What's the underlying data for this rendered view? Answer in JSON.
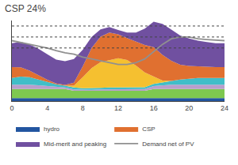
{
  "chart_data": {
    "type": "area",
    "stacked": true,
    "title": "CSP 24%",
    "x": [
      0,
      1,
      2,
      3,
      4,
      5,
      6,
      7,
      8,
      9,
      10,
      11,
      12,
      13,
      14,
      15,
      16,
      17,
      18,
      19,
      20,
      21,
      22,
      23,
      24
    ],
    "series": [
      {
        "name": "hydro",
        "color": "#2255a0",
        "values": [
          0.8,
          0.8,
          0.8,
          0.8,
          0.8,
          0.8,
          0.8,
          0.8,
          0.8,
          0.8,
          0.8,
          0.8,
          0.8,
          0.8,
          0.8,
          0.8,
          0.8,
          0.8,
          0.8,
          0.8,
          0.8,
          0.8,
          0.8,
          0.8,
          0.8
        ]
      },
      {
        "color": "#7ec850",
        "values": [
          2.5,
          2.5,
          2.5,
          2.5,
          2.5,
          2.5,
          2.5,
          2.0,
          2.0,
          2.0,
          2.0,
          2.0,
          2.0,
          2.0,
          2.0,
          2.0,
          2.5,
          2.5,
          2.5,
          2.5,
          2.5,
          2.5,
          2.5,
          2.5,
          2.5
        ]
      },
      {
        "color": "#b89fcc",
        "values": [
          1.2,
          1.2,
          1.2,
          1.0,
          0.8,
          0.5,
          0.4,
          0.4,
          0.3,
          0.3,
          0.4,
          0.4,
          0.4,
          0.4,
          0.4,
          0.5,
          0.8,
          1.0,
          1.2,
          1.2,
          1.2,
          1.2,
          1.2,
          1.2,
          1.2
        ]
      },
      {
        "color": "#40bec8",
        "values": [
          1.8,
          2.2,
          2.0,
          1.6,
          1.2,
          0.8,
          0.5,
          0.5,
          0.4,
          0.4,
          0.4,
          0.5,
          0.5,
          0.5,
          0.5,
          0.5,
          0.6,
          0.8,
          1.0,
          1.4,
          1.6,
          1.8,
          1.8,
          1.8,
          1.8
        ]
      },
      {
        "color": "#f5c030",
        "values": [
          0.0,
          0.0,
          0.0,
          0.0,
          0.0,
          0.0,
          0.0,
          0.5,
          3.0,
          5.5,
          7.0,
          7.5,
          8.0,
          7.5,
          6.0,
          4.0,
          2.0,
          0.5,
          0.0,
          0.0,
          0.0,
          0.0,
          0.0,
          0.0,
          0.0
        ]
      },
      {
        "name": "CSP",
        "color": "#e07030",
        "values": [
          3.0,
          2.5,
          1.8,
          1.2,
          0.5,
          0.2,
          0.2,
          0.8,
          3.0,
          5.5,
          7.0,
          7.5,
          6.5,
          6.0,
          6.5,
          7.5,
          8.0,
          7.0,
          5.5,
          4.0,
          3.5,
          3.2,
          3.0,
          3.0,
          3.0
        ]
      },
      {
        "name": "Mid-merit and peaking",
        "color": "#7050a0",
        "values": [
          6.5,
          7.0,
          7.2,
          7.2,
          7.0,
          6.5,
          6.5,
          6.5,
          4.5,
          3.0,
          2.0,
          1.5,
          1.2,
          1.5,
          2.5,
          4.5,
          7.0,
          8.5,
          8.5,
          8.0,
          7.5,
          7.0,
          6.8,
          6.5,
          6.5
        ]
      },
      {
        "name": "Demand net of PV",
        "type": "line",
        "color": "#909090",
        "values": [
          16.5,
          16.0,
          15.5,
          15.0,
          14.5,
          13.8,
          13.2,
          12.8,
          12.0,
          11.5,
          11.0,
          10.5,
          10.0,
          10.0,
          10.5,
          11.5,
          13.5,
          15.5,
          17.0,
          17.5,
          17.5,
          17.0,
          16.8,
          16.6,
          16.5
        ]
      }
    ],
    "hlines": [
      20.5,
      17.5,
      14.5
    ],
    "xlim": [
      0,
      24
    ],
    "xticks": [
      0,
      4,
      8,
      12,
      16,
      20,
      24
    ],
    "ylim": [
      0,
      22
    ],
    "tick_labels": "x",
    "grid": false,
    "legend": "bottom"
  }
}
